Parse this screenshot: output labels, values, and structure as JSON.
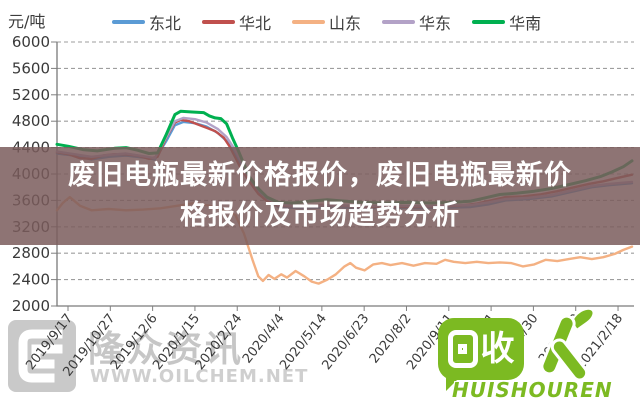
{
  "unit_label": "元/吨",
  "legend": [
    {
      "label": "东北",
      "color": "#5B9BD5"
    },
    {
      "label": "华北",
      "color": "#C0504D"
    },
    {
      "label": "山东",
      "color": "#F4B183"
    },
    {
      "label": "华东",
      "color": "#B3A2C7"
    },
    {
      "label": "华南",
      "color": "#00B050"
    }
  ],
  "banner": {
    "line1": "废旧电瓶最新价格报价，废旧电瓶最新价",
    "line2": "格报价及市场趋势分析"
  },
  "watermark_left": {
    "name": "隆众资讯",
    "url": "WWW.OILCHEM.NET"
  },
  "watermark_right": {
    "text": "回收",
    "sub": "HUISHOUREN"
  },
  "chart_data": {
    "type": "line",
    "title": "废旧电瓶最新价格报价，废旧电瓶最新价格报价及市场趋势分析",
    "ylabel": "元/吨",
    "ylim": [
      2000,
      6000
    ],
    "y_step": 400,
    "grid": "horizontal-dashed",
    "legend_position": "top",
    "x_labels": [
      "2019/9/17",
      "2019/10/27",
      "2019/12/6",
      "2020/1/15",
      "2020/2/24",
      "2020/4/4",
      "2020/5/14",
      "2020/6/23",
      "2020/8/2",
      "2020/9/11",
      "2020/10/21",
      "2020/11/30",
      "2021/1/9",
      "2021/2/18"
    ],
    "series": [
      {
        "name": "东北",
        "color": "#5B9BD5",
        "width": 2.4,
        "points": [
          [
            0,
            4310
          ],
          [
            0.03,
            4280
          ],
          [
            0.06,
            4220
          ],
          [
            0.09,
            4260
          ],
          [
            0.12,
            4280
          ],
          [
            0.15,
            4250
          ],
          [
            0.17,
            4220
          ],
          [
            0.19,
            4500
          ],
          [
            0.205,
            4740
          ],
          [
            0.22,
            4790
          ],
          [
            0.24,
            4770
          ],
          [
            0.26,
            4720
          ],
          [
            0.28,
            4620
          ],
          [
            0.295,
            4500
          ],
          [
            0.31,
            4300
          ],
          [
            0.325,
            4050
          ],
          [
            0.34,
            3830
          ],
          [
            0.36,
            3640
          ],
          [
            0.385,
            3500
          ],
          [
            0.43,
            3480
          ],
          [
            0.48,
            3500
          ],
          [
            0.53,
            3480
          ],
          [
            0.58,
            3490
          ],
          [
            0.63,
            3480
          ],
          [
            0.68,
            3490
          ],
          [
            0.72,
            3500
          ],
          [
            0.75,
            3540
          ],
          [
            0.78,
            3600
          ],
          [
            0.82,
            3620
          ],
          [
            0.86,
            3660
          ],
          [
            0.9,
            3740
          ],
          [
            0.93,
            3800
          ],
          [
            0.96,
            3830
          ],
          [
            1,
            3860
          ]
        ]
      },
      {
        "name": "华北",
        "color": "#C0504D",
        "width": 2.4,
        "points": [
          [
            0,
            4330
          ],
          [
            0.02,
            4300
          ],
          [
            0.04,
            4240
          ],
          [
            0.06,
            4230
          ],
          [
            0.08,
            4280
          ],
          [
            0.1,
            4300
          ],
          [
            0.12,
            4300
          ],
          [
            0.14,
            4280
          ],
          [
            0.16,
            4230
          ],
          [
            0.175,
            4260
          ],
          [
            0.19,
            4550
          ],
          [
            0.205,
            4780
          ],
          [
            0.215,
            4820
          ],
          [
            0.23,
            4800
          ],
          [
            0.245,
            4750
          ],
          [
            0.26,
            4700
          ],
          [
            0.275,
            4650
          ],
          [
            0.29,
            4550
          ],
          [
            0.3,
            4420
          ],
          [
            0.31,
            4250
          ],
          [
            0.32,
            4080
          ],
          [
            0.335,
            3880
          ],
          [
            0.35,
            3700
          ],
          [
            0.365,
            3590
          ],
          [
            0.385,
            3520
          ],
          [
            0.42,
            3510
          ],
          [
            0.46,
            3530
          ],
          [
            0.5,
            3520
          ],
          [
            0.54,
            3500
          ],
          [
            0.58,
            3510
          ],
          [
            0.62,
            3500
          ],
          [
            0.66,
            3510
          ],
          [
            0.7,
            3520
          ],
          [
            0.73,
            3550
          ],
          [
            0.755,
            3600
          ],
          [
            0.78,
            3650
          ],
          [
            0.81,
            3660
          ],
          [
            0.84,
            3690
          ],
          [
            0.87,
            3740
          ],
          [
            0.9,
            3800
          ],
          [
            0.925,
            3850
          ],
          [
            0.95,
            3890
          ],
          [
            0.97,
            3930
          ],
          [
            1,
            3990
          ]
        ]
      },
      {
        "name": "山东",
        "color": "#F4B183",
        "width": 2.4,
        "points": [
          [
            0,
            3450
          ],
          [
            0.01,
            3560
          ],
          [
            0.022,
            3650
          ],
          [
            0.04,
            3520
          ],
          [
            0.06,
            3450
          ],
          [
            0.09,
            3470
          ],
          [
            0.12,
            3450
          ],
          [
            0.15,
            3460
          ],
          [
            0.18,
            3480
          ],
          [
            0.21,
            3520
          ],
          [
            0.24,
            3560
          ],
          [
            0.265,
            3520
          ],
          [
            0.29,
            3450
          ],
          [
            0.31,
            3380
          ],
          [
            0.325,
            3100
          ],
          [
            0.34,
            2700
          ],
          [
            0.35,
            2450
          ],
          [
            0.358,
            2380
          ],
          [
            0.368,
            2470
          ],
          [
            0.378,
            2410
          ],
          [
            0.39,
            2480
          ],
          [
            0.4,
            2430
          ],
          [
            0.415,
            2530
          ],
          [
            0.43,
            2450
          ],
          [
            0.443,
            2370
          ],
          [
            0.455,
            2340
          ],
          [
            0.47,
            2400
          ],
          [
            0.485,
            2480
          ],
          [
            0.5,
            2600
          ],
          [
            0.51,
            2650
          ],
          [
            0.52,
            2580
          ],
          [
            0.535,
            2540
          ],
          [
            0.55,
            2630
          ],
          [
            0.565,
            2650
          ],
          [
            0.58,
            2620
          ],
          [
            0.6,
            2650
          ],
          [
            0.62,
            2610
          ],
          [
            0.64,
            2650
          ],
          [
            0.66,
            2640
          ],
          [
            0.675,
            2700
          ],
          [
            0.69,
            2670
          ],
          [
            0.71,
            2650
          ],
          [
            0.73,
            2670
          ],
          [
            0.75,
            2650
          ],
          [
            0.77,
            2660
          ],
          [
            0.79,
            2650
          ],
          [
            0.81,
            2600
          ],
          [
            0.83,
            2630
          ],
          [
            0.85,
            2700
          ],
          [
            0.87,
            2680
          ],
          [
            0.89,
            2710
          ],
          [
            0.91,
            2740
          ],
          [
            0.93,
            2710
          ],
          [
            0.95,
            2740
          ],
          [
            0.97,
            2790
          ],
          [
            0.985,
            2850
          ],
          [
            1,
            2900
          ]
        ]
      },
      {
        "name": "华东",
        "color": "#B3A2C7",
        "width": 2.4,
        "points": [
          [
            0,
            4340
          ],
          [
            0.03,
            4300
          ],
          [
            0.06,
            4260
          ],
          [
            0.09,
            4290
          ],
          [
            0.12,
            4310
          ],
          [
            0.15,
            4270
          ],
          [
            0.17,
            4240
          ],
          [
            0.19,
            4560
          ],
          [
            0.205,
            4800
          ],
          [
            0.22,
            4850
          ],
          [
            0.24,
            4830
          ],
          [
            0.26,
            4780
          ],
          [
            0.28,
            4680
          ],
          [
            0.295,
            4560
          ],
          [
            0.31,
            4360
          ],
          [
            0.325,
            4120
          ],
          [
            0.34,
            3900
          ],
          [
            0.36,
            3680
          ],
          [
            0.385,
            3530
          ],
          [
            0.43,
            3510
          ],
          [
            0.48,
            3530
          ],
          [
            0.53,
            3510
          ],
          [
            0.58,
            3520
          ],
          [
            0.63,
            3510
          ],
          [
            0.68,
            3520
          ],
          [
            0.72,
            3530
          ],
          [
            0.75,
            3570
          ],
          [
            0.78,
            3620
          ],
          [
            0.82,
            3640
          ],
          [
            0.86,
            3680
          ],
          [
            0.9,
            3760
          ],
          [
            0.93,
            3820
          ],
          [
            0.96,
            3850
          ],
          [
            1,
            3880
          ]
        ]
      },
      {
        "name": "华南",
        "color": "#00B050",
        "width": 3,
        "points": [
          [
            0,
            4450
          ],
          [
            0.02,
            4420
          ],
          [
            0.045,
            4370
          ],
          [
            0.07,
            4350
          ],
          [
            0.1,
            4390
          ],
          [
            0.12,
            4400
          ],
          [
            0.14,
            4360
          ],
          [
            0.16,
            4310
          ],
          [
            0.175,
            4320
          ],
          [
            0.19,
            4600
          ],
          [
            0.205,
            4900
          ],
          [
            0.215,
            4950
          ],
          [
            0.235,
            4940
          ],
          [
            0.255,
            4930
          ],
          [
            0.265,
            4880
          ],
          [
            0.275,
            4850
          ],
          [
            0.285,
            4840
          ],
          [
            0.295,
            4760
          ],
          [
            0.305,
            4550
          ],
          [
            0.315,
            4360
          ],
          [
            0.325,
            4150
          ],
          [
            0.335,
            3950
          ],
          [
            0.35,
            3780
          ],
          [
            0.365,
            3650
          ],
          [
            0.385,
            3570
          ],
          [
            0.41,
            3560
          ],
          [
            0.44,
            3590
          ],
          [
            0.47,
            3610
          ],
          [
            0.5,
            3590
          ],
          [
            0.53,
            3570
          ],
          [
            0.57,
            3560
          ],
          [
            0.61,
            3570
          ],
          [
            0.65,
            3560
          ],
          [
            0.69,
            3570
          ],
          [
            0.72,
            3590
          ],
          [
            0.745,
            3640
          ],
          [
            0.77,
            3690
          ],
          [
            0.8,
            3710
          ],
          [
            0.83,
            3740
          ],
          [
            0.86,
            3780
          ],
          [
            0.89,
            3840
          ],
          [
            0.92,
            3900
          ],
          [
            0.945,
            3960
          ],
          [
            0.965,
            4030
          ],
          [
            0.985,
            4110
          ],
          [
            1,
            4200
          ]
        ]
      }
    ]
  }
}
